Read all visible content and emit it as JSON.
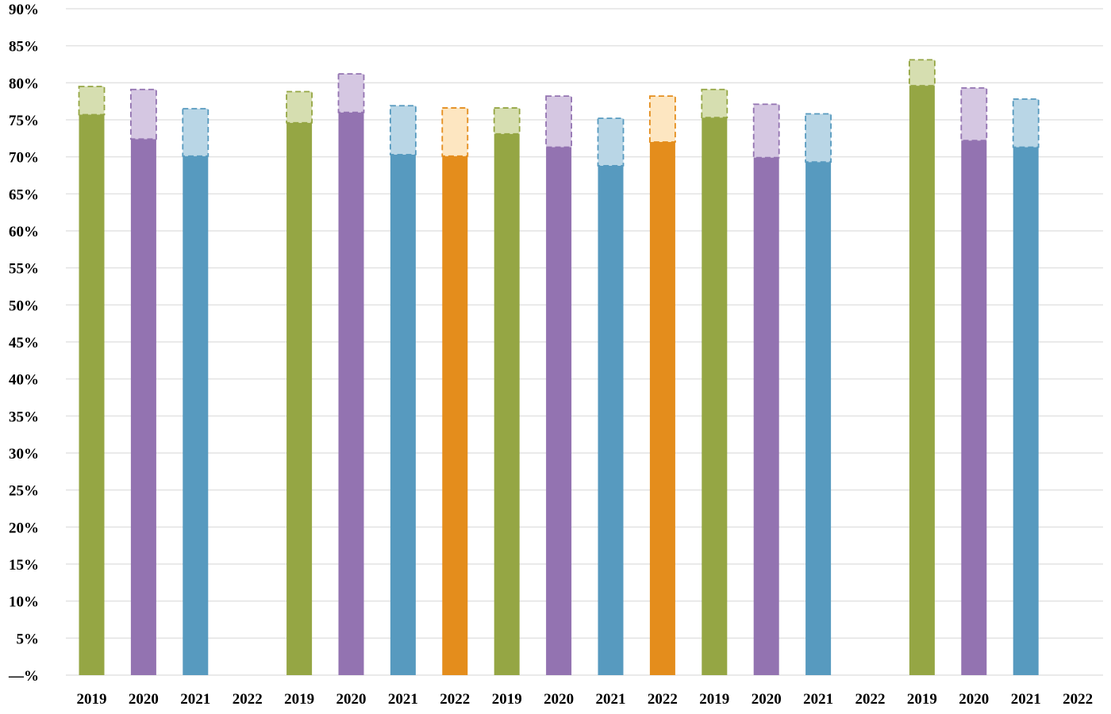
{
  "chart_data": {
    "type": "bar",
    "stacked": true,
    "ylim": [
      0,
      90
    ],
    "yticks": [
      0,
      5,
      10,
      15,
      20,
      25,
      30,
      35,
      40,
      45,
      50,
      55,
      60,
      65,
      70,
      75,
      80,
      85,
      90
    ],
    "ytick_labels": [
      "—%",
      "5%",
      "10%",
      "15%",
      "20%",
      "25%",
      "30%",
      "35%",
      "40%",
      "45%",
      "50%",
      "55%",
      "60%",
      "65%",
      "70%",
      "75%",
      "80%",
      "85%",
      "90%"
    ],
    "grid": true,
    "legend": "none",
    "title": "",
    "xlabel": "",
    "ylabel": "",
    "categories": [
      "2019",
      "2020",
      "2021",
      "2022",
      "2019",
      "2020",
      "2021",
      "2022",
      "2019",
      "2020",
      "2021",
      "2022",
      "2019",
      "2020",
      "2021",
      "2022",
      "2019",
      "2020",
      "2021",
      "2022"
    ],
    "base_values": [
      75.7,
      72.4,
      70.1,
      null,
      74.6,
      76.0,
      70.3,
      70.1,
      73.1,
      71.3,
      68.8,
      72.0,
      75.3,
      69.9,
      69.3,
      null,
      79.6,
      72.2,
      71.3,
      null
    ],
    "upper_values": [
      79.5,
      79.1,
      76.5,
      null,
      78.8,
      81.2,
      76.9,
      76.6,
      76.6,
      78.2,
      75.2,
      78.2,
      79.1,
      77.1,
      75.8,
      null,
      83.1,
      79.3,
      77.8,
      null
    ],
    "colors": {
      "2019": {
        "solid": "#95a644",
        "light": "#d6deb0",
        "edge": "#95a644"
      },
      "2020": {
        "solid": "#9373b1",
        "light": "#d5c7e2",
        "edge": "#9373b1"
      },
      "2021": {
        "solid": "#579abf",
        "light": "#b9d6e6",
        "edge": "#579abf"
      },
      "2022": {
        "solid": "#e48d1c",
        "light": "#fde6c1",
        "edge": "#e48d1c"
      }
    },
    "gridline_color": "#e3e3e3"
  }
}
